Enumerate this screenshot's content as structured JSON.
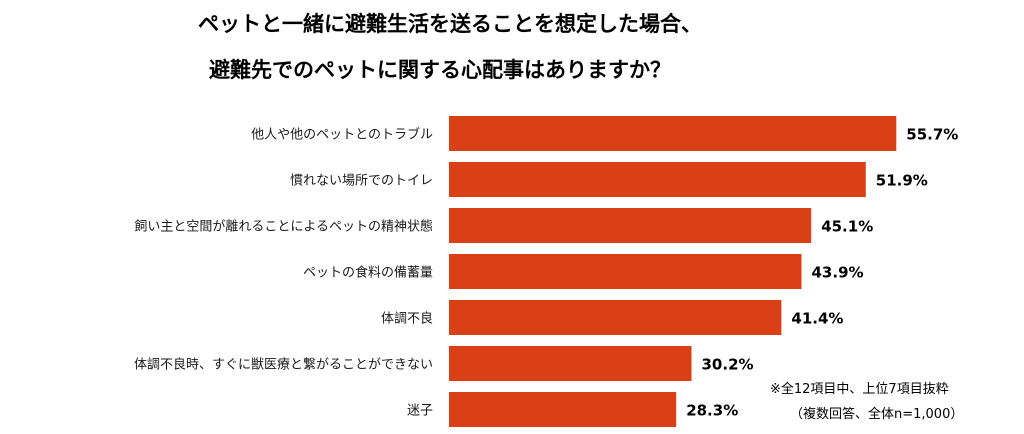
{
  "chart_data": {
    "type": "bar",
    "orientation": "horizontal",
    "title_lines": [
      "ペットと一緒に避難生活を送ることを想定した場合、",
      "避難先でのペットに関する心配事はありますか？"
    ],
    "categories": [
      "他人や他のペットとのトラブル",
      "慣れない場所でのトイレ",
      "飼い主と空間が離れることによるペットの精神状態",
      "ペットの食料の備蓄量",
      "体調不良",
      "体調不良時、すぐに獣医療と繋がることができない",
      "迷子"
    ],
    "values": [
      55.7,
      51.9,
      45.1,
      43.9,
      41.4,
      30.2,
      28.3
    ],
    "value_labels": [
      "55.7%",
      "51.9%",
      "45.1%",
      "43.9%",
      "41.4%",
      "30.2%",
      "28.3%"
    ],
    "unit": "%",
    "bar_color": "#d94016",
    "grid": false,
    "legend": "none"
  },
  "notes": [
    "※全12項目中、上位7項目抜粋",
    "（複数回答、全体n=1,000）"
  ]
}
